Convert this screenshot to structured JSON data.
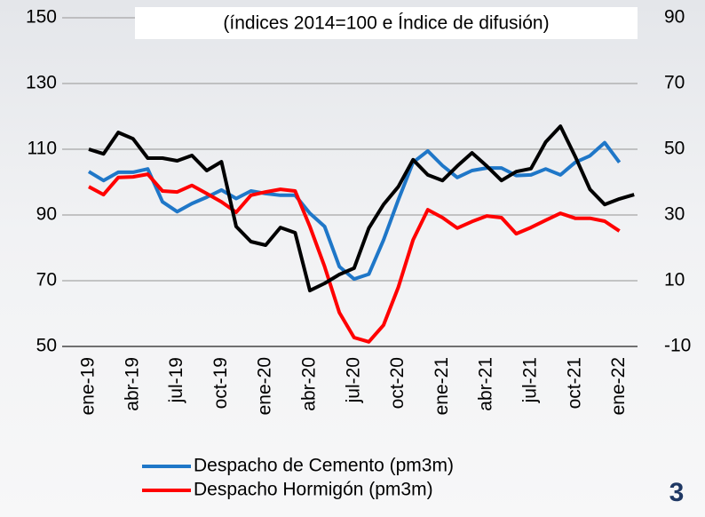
{
  "chart_data": {
    "type": "line",
    "subtitle": "(índices 2014=100 e Índice de difusión)",
    "page_number": "3",
    "categories": [
      "ene-19",
      null,
      null,
      "abr-19",
      null,
      null,
      "jul-19",
      null,
      null,
      "oct-19",
      null,
      null,
      "ene-20",
      null,
      null,
      "abr-20",
      null,
      null,
      "jul-20",
      null,
      null,
      "oct-20",
      null,
      null,
      "ene-21",
      null,
      null,
      "abr-21",
      null,
      null,
      "jul-21",
      null,
      null,
      "oct-21",
      null,
      null,
      "ene-22",
      null
    ],
    "ylim": [
      50,
      150
    ],
    "yticks": [
      50,
      70,
      90,
      110,
      130,
      150
    ],
    "y2lim": [
      -10,
      90
    ],
    "y2ticks": [
      -10,
      10,
      30,
      50,
      70,
      90
    ],
    "grid": true,
    "series": [
      {
        "name": "Despacho de Cemento (pm3m)",
        "color": "#1f77c8",
        "values": [
          103.2,
          100.5,
          103,
          103,
          104,
          94,
          91,
          93.5,
          95.4,
          97.6,
          95,
          97.3,
          96.5,
          96,
          96,
          90.5,
          86.5,
          74.3,
          70.5,
          72,
          82.4,
          94.6,
          106,
          109.5,
          105,
          101.4,
          103.5,
          104.3,
          104.3,
          102,
          102.2,
          104,
          102.2,
          106,
          108,
          112,
          106,
          null
        ]
      },
      {
        "name": "Despacho Hormigón (pm3m)",
        "color": "#ff0000",
        "values": [
          98.6,
          96.2,
          101.4,
          101.6,
          102.4,
          97.3,
          97,
          99,
          96.5,
          94,
          90.8,
          96,
          97,
          97.8,
          97.3,
          86.5,
          74.3,
          60.3,
          52.7,
          51.4,
          56.5,
          68,
          82.4,
          91.6,
          89.2,
          86,
          88,
          89.7,
          89.2,
          84.3,
          86.2,
          88.4,
          90.5,
          89,
          89,
          88.1,
          85.1,
          null
        ]
      },
      {
        "color": "#000000",
        "axis": "y2",
        "values": [
          50,
          48.6,
          55.1,
          53.2,
          47.3,
          47.3,
          46.5,
          48.1,
          43.5,
          46.2,
          26.5,
          21.9,
          20.8,
          26.2,
          24.6,
          7,
          9.2,
          11.9,
          13.8,
          26,
          33.2,
          38.6,
          46.8,
          42.2,
          40.5,
          44.9,
          48.9,
          44.9,
          40.5,
          43.2,
          44.1,
          52.2,
          57,
          47.8,
          37.8,
          33.2,
          34.9,
          36.2
        ]
      }
    ]
  }
}
